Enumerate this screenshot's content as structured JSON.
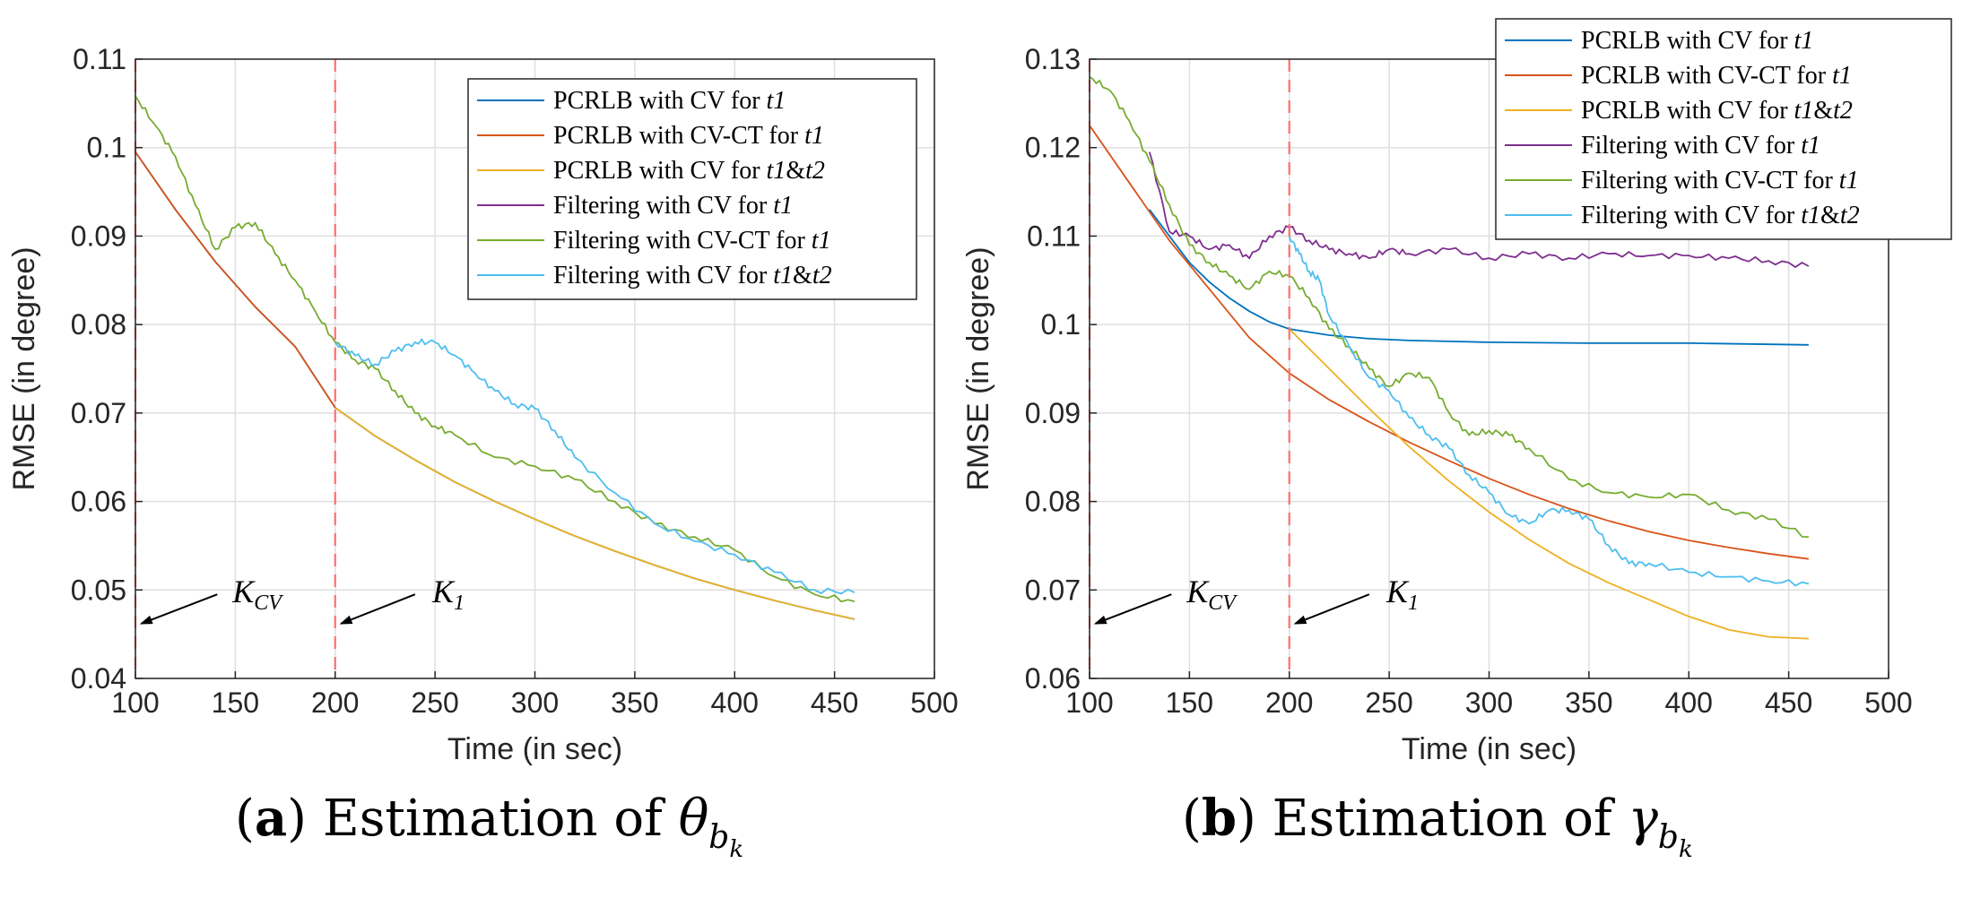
{
  "chart_data": [
    {
      "id": "a",
      "type": "line",
      "caption": {
        "letter": "(a)",
        "text": "Estimation of θ",
        "sub": "b",
        "subsub": "k"
      },
      "xlabel": "Time (in sec)",
      "ylabel": "RMSE (in degree)",
      "xlim": [
        100,
        500
      ],
      "ylim": [
        0.04,
        0.11
      ],
      "xticks": [
        100,
        150,
        200,
        250,
        300,
        350,
        400,
        450,
        500
      ],
      "yticks": [
        0.04,
        0.05,
        0.06,
        0.07,
        0.08,
        0.09,
        0.1,
        0.11
      ],
      "ytick_labels": [
        "0.04",
        "0.05",
        "0.06",
        "0.07",
        "0.08",
        "0.09",
        "0.1",
        "0.11"
      ],
      "grid": true,
      "legend": "top-right",
      "vlines": [
        100,
        200
      ],
      "annotations": [
        {
          "label": "K",
          "sub": "CV",
          "text_x": 145,
          "text_y": 0.049,
          "arrow_from": [
            141,
            0.0495
          ],
          "arrow_to": [
            103,
            0.0462
          ]
        },
        {
          "label": "K",
          "sub": "1",
          "text_x": 245,
          "text_y": 0.049,
          "arrow_from": [
            240,
            0.0495
          ],
          "arrow_to": [
            203,
            0.0462
          ]
        }
      ],
      "series": [
        {
          "name": "PCRLB with CV for t1",
          "label_main": "PCRLB with CV for ",
          "label_vars": [
            "t1"
          ],
          "color": "#0072BD",
          "x": [
            100,
            120,
            140,
            160,
            180,
            200,
            220,
            240,
            260,
            280,
            300,
            320,
            340,
            360,
            380,
            400,
            420,
            440,
            460
          ],
          "y": [
            0.0995,
            0.093,
            0.0871,
            0.082,
            0.0775,
            0.0706,
            0.0674,
            0.0647,
            0.0622,
            0.06,
            0.058,
            0.0561,
            0.0544,
            0.0528,
            0.0513,
            0.05,
            0.0488,
            0.0477,
            0.0467
          ]
        },
        {
          "name": "PCRLB with CV-CT for t1",
          "label_main": "PCRLB with CV-CT for ",
          "label_vars": [
            "t1"
          ],
          "color": "#D95319",
          "x": [
            100,
            120,
            140,
            160,
            180,
            200
          ],
          "y": [
            0.0995,
            0.093,
            0.0871,
            0.082,
            0.0775,
            0.0706
          ]
        },
        {
          "name": "PCRLB with CV for t1&t2",
          "label_main": "PCRLB with CV for ",
          "label_vars": [
            "t1",
            "&",
            "t2"
          ],
          "color": "#EDB120",
          "x": [
            200,
            220,
            240,
            260,
            280,
            300,
            320,
            340,
            360,
            380,
            400,
            420,
            440,
            460
          ],
          "y": [
            0.0706,
            0.0674,
            0.0647,
            0.0622,
            0.06,
            0.058,
            0.0561,
            0.0544,
            0.0528,
            0.0513,
            0.05,
            0.0488,
            0.0477,
            0.0467
          ]
        },
        {
          "name": "Filtering with CV for t1",
          "label_main": "Filtering with CV for ",
          "label_vars": [
            "t1"
          ],
          "color": "#7E2F8E",
          "x": [],
          "y": []
        },
        {
          "name": "Filtering with CV-CT for t1",
          "label_main": "Filtering with CV-CT for ",
          "label_vars": [
            "t1"
          ],
          "color": "#77AC30",
          "x": [
            100,
            110,
            120,
            130,
            140,
            150,
            160,
            170,
            180,
            190,
            200,
            210,
            220,
            230,
            240,
            250,
            260,
            280,
            300,
            320,
            340,
            360,
            380,
            400,
            420,
            440,
            460
          ],
          "y": [
            0.1058,
            0.1025,
            0.099,
            0.0935,
            0.0885,
            0.091,
            0.0915,
            0.088,
            0.085,
            0.0815,
            0.078,
            0.076,
            0.075,
            0.0725,
            0.07,
            0.0685,
            0.0675,
            0.065,
            0.064,
            0.0625,
            0.06,
            0.0575,
            0.056,
            0.0545,
            0.0515,
            0.0495,
            0.0487
          ]
        },
        {
          "name": "Filtering with CV for t1&t2",
          "label_main": "Filtering with CV for ",
          "label_vars": [
            "t1",
            "&",
            "t2"
          ],
          "color": "#4DBEEE",
          "x": [
            200,
            210,
            220,
            230,
            240,
            250,
            260,
            270,
            280,
            290,
            300,
            310,
            320,
            340,
            360,
            380,
            400,
            420,
            440,
            460
          ],
          "y": [
            0.078,
            0.0765,
            0.0755,
            0.077,
            0.078,
            0.078,
            0.0765,
            0.0745,
            0.0725,
            0.071,
            0.0705,
            0.068,
            0.065,
            0.061,
            0.0575,
            0.0555,
            0.054,
            0.052,
            0.05,
            0.0497
          ]
        }
      ]
    },
    {
      "id": "b",
      "type": "line",
      "caption": {
        "letter": "(b)",
        "text": "Estimation of γ",
        "sub": "b",
        "subsub": "k"
      },
      "xlabel": "Time (in sec)",
      "ylabel": "RMSE (in degree)",
      "xlim": [
        100,
        500
      ],
      "ylim": [
        0.06,
        0.13
      ],
      "xticks": [
        100,
        150,
        200,
        250,
        300,
        350,
        400,
        450,
        500
      ],
      "yticks": [
        0.06,
        0.07,
        0.08,
        0.09,
        0.1,
        0.11,
        0.12,
        0.13
      ],
      "ytick_labels": [
        "0.06",
        "0.07",
        "0.08",
        "0.09",
        "0.1",
        "0.11",
        "0.12",
        "0.13"
      ],
      "grid": true,
      "legend": "top-right",
      "vlines": [
        100,
        200
      ],
      "annotations": [
        {
          "label": "K",
          "sub": "CV",
          "text_x": 145,
          "text_y": 0.069,
          "arrow_from": [
            141,
            0.0695
          ],
          "arrow_to": [
            103,
            0.0662
          ]
        },
        {
          "label": "K",
          "sub": "1",
          "text_x": 245,
          "text_y": 0.069,
          "arrow_from": [
            240,
            0.0695
          ],
          "arrow_to": [
            203,
            0.0662
          ]
        }
      ],
      "series": [
        {
          "name": "PCRLB with CV for t1",
          "label_main": "PCRLB with CV for ",
          "label_vars": [
            "t1"
          ],
          "color": "#0072BD",
          "x": [
            130,
            140,
            150,
            160,
            170,
            180,
            190,
            200,
            220,
            240,
            260,
            280,
            300,
            350,
            400,
            460
          ],
          "y": [
            0.113,
            0.11,
            0.107,
            0.1048,
            0.103,
            0.1015,
            0.1003,
            0.0995,
            0.0988,
            0.0984,
            0.0982,
            0.0981,
            0.098,
            0.0979,
            0.0979,
            0.0977
          ]
        },
        {
          "name": "PCRLB with CV-CT for t1",
          "label_main": "PCRLB with CV-CT for ",
          "label_vars": [
            "t1"
          ],
          "color": "#D95319",
          "x": [
            100,
            120,
            140,
            160,
            180,
            200,
            220,
            240,
            260,
            280,
            300,
            320,
            340,
            360,
            380,
            400,
            420,
            440,
            460
          ],
          "y": [
            0.1225,
            0.116,
            0.1095,
            0.104,
            0.0985,
            0.0945,
            0.0915,
            0.089,
            0.0867,
            0.0846,
            0.0826,
            0.0808,
            0.0792,
            0.0778,
            0.0766,
            0.0756,
            0.0748,
            0.0741,
            0.0735
          ]
        },
        {
          "name": "PCRLB with CV for t1&t2",
          "label_main": "PCRLB with CV for ",
          "label_vars": [
            "t1",
            "&",
            "t2"
          ],
          "color": "#EDB120",
          "x": [
            200,
            220,
            240,
            260,
            280,
            300,
            320,
            340,
            360,
            380,
            400,
            420,
            440,
            460
          ],
          "y": [
            0.0995,
            0.095,
            0.0905,
            0.0862,
            0.0823,
            0.0788,
            0.0757,
            0.073,
            0.0708,
            0.0689,
            0.067,
            0.0655,
            0.0647,
            0.0645
          ]
        },
        {
          "name": "Filtering with CV for t1",
          "label_main": "Filtering with CV for ",
          "label_vars": [
            "t1"
          ],
          "color": "#7E2F8E",
          "x": [
            130,
            140,
            150,
            160,
            170,
            180,
            190,
            200,
            210,
            220,
            230,
            240,
            250,
            260,
            280,
            300,
            320,
            340,
            360,
            380,
            400,
            420,
            440,
            460
          ],
          "y": [
            0.1195,
            0.1105,
            0.11,
            0.1085,
            0.109,
            0.1075,
            0.11,
            0.111,
            0.1095,
            0.1085,
            0.108,
            0.1075,
            0.1085,
            0.108,
            0.1085,
            0.1075,
            0.108,
            0.1075,
            0.108,
            0.1078,
            0.1078,
            0.1075,
            0.1072,
            0.1066
          ]
        },
        {
          "name": "Filtering with CV-CT for t1",
          "label_main": "Filtering with CV-CT for ",
          "label_vars": [
            "t1"
          ],
          "color": "#77AC30",
          "x": [
            100,
            110,
            120,
            130,
            140,
            150,
            160,
            170,
            180,
            190,
            200,
            210,
            220,
            230,
            240,
            250,
            260,
            270,
            280,
            290,
            300,
            310,
            320,
            340,
            360,
            380,
            400,
            420,
            440,
            460
          ],
          "y": [
            0.128,
            0.1265,
            0.123,
            0.1185,
            0.1135,
            0.109,
            0.107,
            0.1055,
            0.104,
            0.106,
            0.1055,
            0.103,
            0.0995,
            0.0975,
            0.095,
            0.093,
            0.0945,
            0.094,
            0.09,
            0.0875,
            0.088,
            0.0875,
            0.086,
            0.0825,
            0.081,
            0.0805,
            0.0808,
            0.079,
            0.078,
            0.076
          ]
        },
        {
          "name": "Filtering with CV for t1&t2",
          "label_main": "Filtering with CV for ",
          "label_vars": [
            "t1",
            "&",
            "t2"
          ],
          "color": "#4DBEEE",
          "x": [
            200,
            205,
            210,
            215,
            220,
            230,
            240,
            250,
            260,
            270,
            280,
            290,
            300,
            310,
            320,
            330,
            340,
            350,
            360,
            370,
            380,
            400,
            420,
            440,
            460
          ],
          "y": [
            0.11,
            0.108,
            0.106,
            0.105,
            0.101,
            0.0975,
            0.094,
            0.0925,
            0.0895,
            0.0875,
            0.086,
            0.083,
            0.081,
            0.0785,
            0.0775,
            0.079,
            0.079,
            0.078,
            0.075,
            0.073,
            0.073,
            0.072,
            0.0715,
            0.071,
            0.0707
          ]
        }
      ]
    }
  ]
}
